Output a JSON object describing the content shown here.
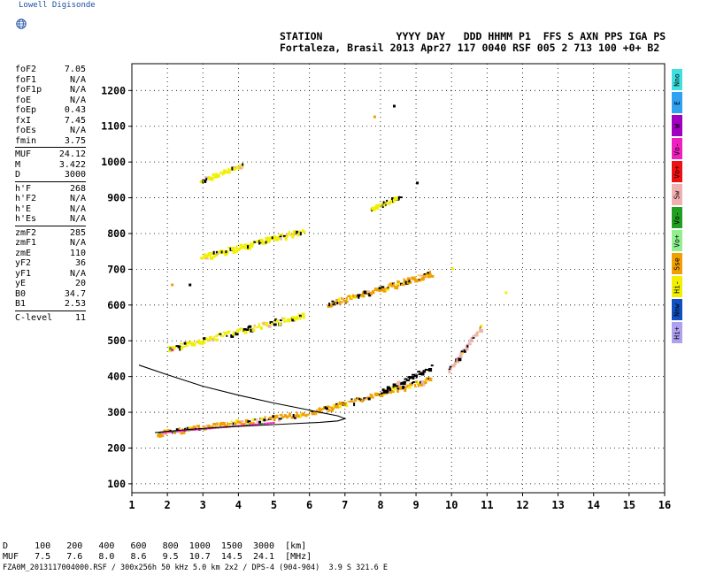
{
  "header": {
    "logo_text": "Lowell Digisonde",
    "labels_row": "STATION            YYYY DAY   DDD HHMM P1  FFS S AXN PPS IGA PS",
    "values_row": "Fortaleza, Brasil 2013 Apr27 117 0040 RSF 005 2 713 100 +0+ B2"
  },
  "params": {
    "group1": [
      {
        "name": "foF2",
        "value": "7.05"
      },
      {
        "name": "foF1",
        "value": "N/A"
      },
      {
        "name": "foF1p",
        "value": "N/A"
      },
      {
        "name": "foE",
        "value": "N/A"
      },
      {
        "name": "foEp",
        "value": "0.43"
      },
      {
        "name": "fxI",
        "value": "7.45"
      },
      {
        "name": "foEs",
        "value": "N/A"
      },
      {
        "name": "fmin",
        "value": "3.75"
      }
    ],
    "group2": [
      {
        "name": "MUF",
        "value": "24.12"
      },
      {
        "name": "M",
        "value": "3.422"
      },
      {
        "name": "D",
        "value": "3000"
      }
    ],
    "group3": [
      {
        "name": "h'F",
        "value": "268"
      },
      {
        "name": "h'F2",
        "value": "N/A"
      },
      {
        "name": "h'E",
        "value": "N/A"
      },
      {
        "name": "h'Es",
        "value": "N/A"
      }
    ],
    "group4": [
      {
        "name": "zmF2",
        "value": "285"
      },
      {
        "name": "zmF1",
        "value": "N/A"
      },
      {
        "name": "zmE",
        "value": "110"
      },
      {
        "name": "yF2",
        "value": "36"
      },
      {
        "name": "yF1",
        "value": "N/A"
      },
      {
        "name": "yE",
        "value": "20"
      },
      {
        "name": "B0",
        "value": "34.7"
      },
      {
        "name": "B1",
        "value": "2.53"
      }
    ],
    "group5": [
      {
        "name": "C-level",
        "value": "11"
      }
    ]
  },
  "legend": [
    {
      "label": "Nno",
      "color": "#40e0e0"
    },
    {
      "label": "E",
      "color": "#30a0f0"
    },
    {
      "label": "W",
      "color": "#a000c0"
    },
    {
      "label": "Vo-",
      "color": "#f020c0"
    },
    {
      "label": "Vo+",
      "color": "#f01010"
    },
    {
      "label": "Sw",
      "color": "#f0b0b0"
    },
    {
      "label": "Vo-",
      "color": "#20a020"
    },
    {
      "label": "Vo+",
      "color": "#90f090"
    },
    {
      "label": "Sse",
      "color": "#f0a000"
    },
    {
      "label": "Hi-",
      "color": "#f0f000"
    },
    {
      "label": "Nnw",
      "color": "#1050c0"
    },
    {
      "label": "Hi+",
      "color": "#b0a0f0"
    }
  ],
  "footer": {
    "row_d": "D     100   200   400   600   800  1000  1500  3000  [km]",
    "row_muf": "MUF   7.5   7.6   8.0   8.6   9.5  10.7  14.5  24.1  [MHz]",
    "file_line": "FZA0M_2013117004000.RSF / 300x256h 50 kHz 5.0 km 2x2 / DPS-4 (904-904)  3.9 S 321.6 E"
  },
  "chart_data": {
    "type": "scatter",
    "xlim": [
      1,
      16
    ],
    "ylim": [
      75,
      1275
    ],
    "x_ticks": [
      "1",
      "2",
      "3",
      "4",
      "5",
      "6",
      "7",
      "8",
      "9",
      "10",
      "11",
      "12",
      "13",
      "14",
      "15",
      "16"
    ],
    "y_ticks": [
      "100",
      "200",
      "300",
      "400",
      "500",
      "600",
      "700",
      "800",
      "900",
      "1000",
      "1100",
      "1200"
    ],
    "grid": "dotted",
    "profile_curve": [
      [
        1.2,
        432
      ],
      [
        2.0,
        405
      ],
      [
        3.0,
        373
      ],
      [
        4.0,
        348
      ],
      [
        5.0,
        326
      ],
      [
        5.8,
        310
      ],
      [
        6.4,
        298
      ],
      [
        6.8,
        290
      ],
      [
        7.0,
        282
      ],
      [
        6.8,
        276
      ],
      [
        6.3,
        272
      ],
      [
        5.5,
        268
      ],
      [
        4.5,
        263
      ],
      [
        3.5,
        258
      ],
      [
        2.6,
        252
      ],
      [
        1.9,
        246
      ],
      [
        1.65,
        243
      ]
    ],
    "traces": [
      {
        "name": "F2 1-hop",
        "color": "#f0a000",
        "from": [
          1.7,
          243
        ],
        "to": [
          5.9,
          300
        ],
        "dense": true
      },
      {
        "name": "F2 1-hop high",
        "color": "#f0a000",
        "from": [
          6.0,
          300
        ],
        "to": [
          9.4,
          395
        ],
        "dense": true
      },
      {
        "name": "F2 1-hop top",
        "color": "#000000",
        "from": [
          8.0,
          360
        ],
        "to": [
          9.4,
          430
        ],
        "dense": false
      },
      {
        "name": "F2 2-hop",
        "color": "#f0f000",
        "from": [
          2.0,
          480
        ],
        "to": [
          5.8,
          575
        ],
        "dense": true
      },
      {
        "name": "F2 2-hop upper",
        "color": "#f0a000",
        "from": [
          6.5,
          605
        ],
        "to": [
          9.4,
          690
        ],
        "dense": true
      },
      {
        "name": "F2 3-hop",
        "color": "#f0f000",
        "from": [
          2.9,
          735
        ],
        "to": [
          5.8,
          810
        ],
        "dense": true
      },
      {
        "name": "F2 3-hop upper",
        "color": "#f0f000",
        "from": [
          7.7,
          870
        ],
        "to": [
          8.5,
          905
        ],
        "dense": false
      },
      {
        "name": "F2 4-hop",
        "color": "#f0f000",
        "from": [
          2.9,
          950
        ],
        "to": [
          4.1,
          995
        ],
        "dense": false
      },
      {
        "name": "Scatter 10MHz",
        "color": "#f0b0b0",
        "from": [
          9.9,
          420
        ],
        "to": [
          10.8,
          540
        ],
        "dense": false
      }
    ]
  }
}
